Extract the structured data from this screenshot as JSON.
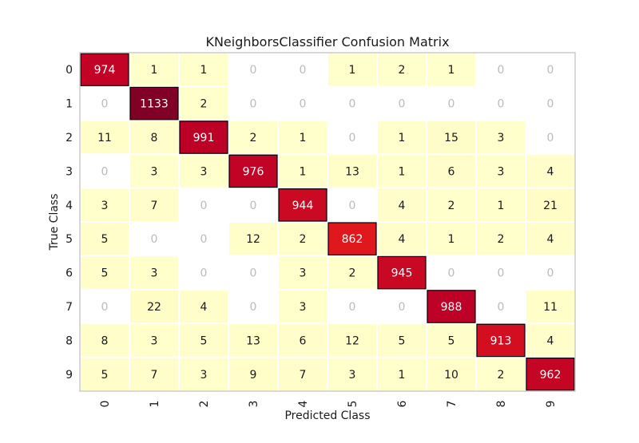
{
  "chart_data": {
    "type": "heatmap",
    "title": "KNeighborsClassifier Confusion Matrix",
    "xlabel": "Predicted Class",
    "ylabel": "True Class",
    "x_categories": [
      "0",
      "1",
      "2",
      "3",
      "4",
      "5",
      "6",
      "7",
      "8",
      "9"
    ],
    "y_categories": [
      "0",
      "1",
      "2",
      "3",
      "4",
      "5",
      "6",
      "7",
      "8",
      "9"
    ],
    "matrix": [
      [
        974,
        1,
        1,
        0,
        0,
        1,
        2,
        1,
        0,
        0
      ],
      [
        0,
        1133,
        2,
        0,
        0,
        0,
        0,
        0,
        0,
        0
      ],
      [
        11,
        8,
        991,
        2,
        1,
        0,
        1,
        15,
        3,
        0
      ],
      [
        0,
        3,
        3,
        976,
        1,
        13,
        1,
        6,
        3,
        4
      ],
      [
        3,
        7,
        0,
        0,
        944,
        0,
        4,
        2,
        1,
        21
      ],
      [
        5,
        0,
        0,
        12,
        2,
        862,
        4,
        1,
        2,
        4
      ],
      [
        5,
        3,
        0,
        0,
        3,
        2,
        945,
        0,
        0,
        0
      ],
      [
        0,
        22,
        4,
        0,
        3,
        0,
        0,
        988,
        0,
        11
      ],
      [
        8,
        3,
        5,
        13,
        6,
        12,
        5,
        5,
        913,
        4
      ],
      [
        5,
        7,
        3,
        9,
        7,
        3,
        1,
        10,
        2,
        962
      ]
    ],
    "colormap": "YlOrRd",
    "zero_cells": "white with gray text",
    "diagonal_border": "black",
    "colors": {
      "low": "#ffffcc",
      "mid_high": "#e31a1c",
      "high": "#bd0026",
      "max": "#800026",
      "zero_text": "#bbbbbb",
      "frame": "#cccccc"
    }
  }
}
